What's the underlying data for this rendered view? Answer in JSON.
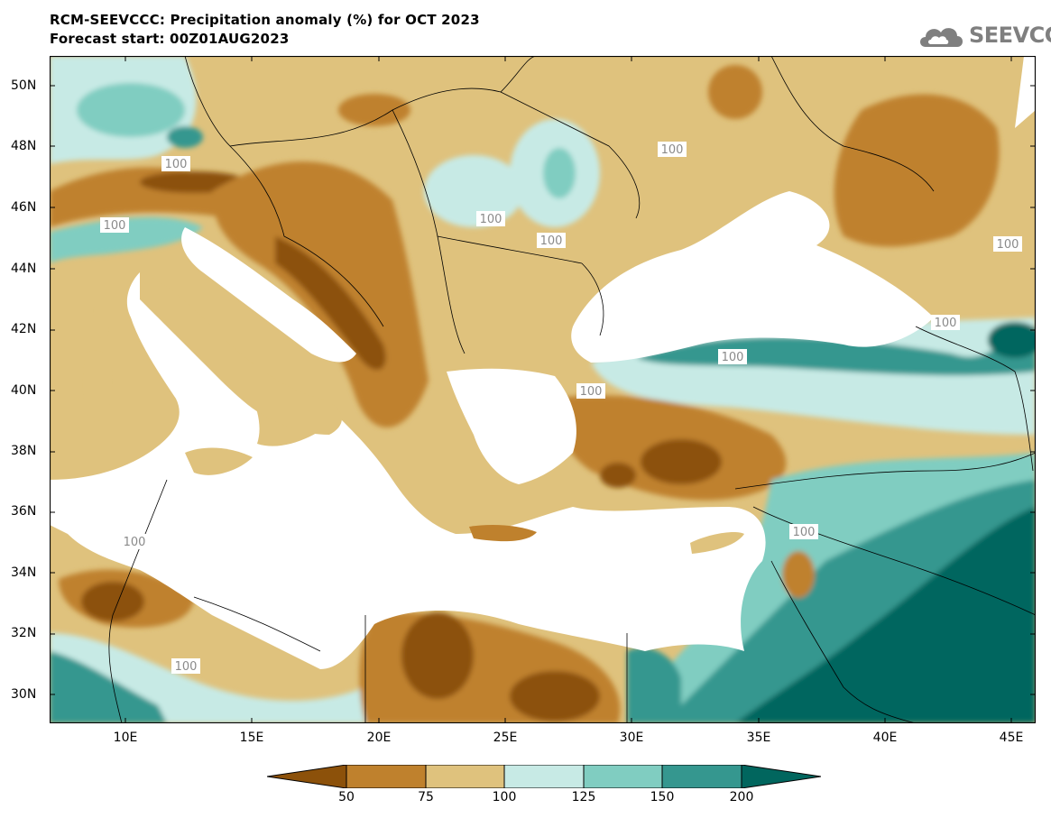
{
  "header": {
    "title": "RCM-SEEVCCC: Precipitation anomaly (%) for OCT 2023",
    "subtitle": "Forecast start: 00Z01AUG2023"
  },
  "logo": {
    "text": "SEEVCCC",
    "icon": "cloud-icon"
  },
  "axes": {
    "lat_labels": [
      "50N",
      "48N",
      "46N",
      "44N",
      "42N",
      "40N",
      "38N",
      "36N",
      "34N",
      "32N",
      "30N"
    ],
    "lon_labels": [
      "10E",
      "15E",
      "20E",
      "25E",
      "30E",
      "35E",
      "40E",
      "45E"
    ]
  },
  "map": {
    "contour_label": "100",
    "colors": {
      "lt50": "#8c510a",
      "50_75": "#bf812d",
      "75_100": "#dfc27d",
      "100_125": "#c7eae5",
      "125_150": "#80cdc1",
      "150_200": "#35978f",
      "gt200": "#01665e",
      "sea": "#ffffff"
    }
  },
  "colorbar": {
    "labels": [
      "50",
      "75",
      "100",
      "125",
      "150",
      "200"
    ]
  }
}
